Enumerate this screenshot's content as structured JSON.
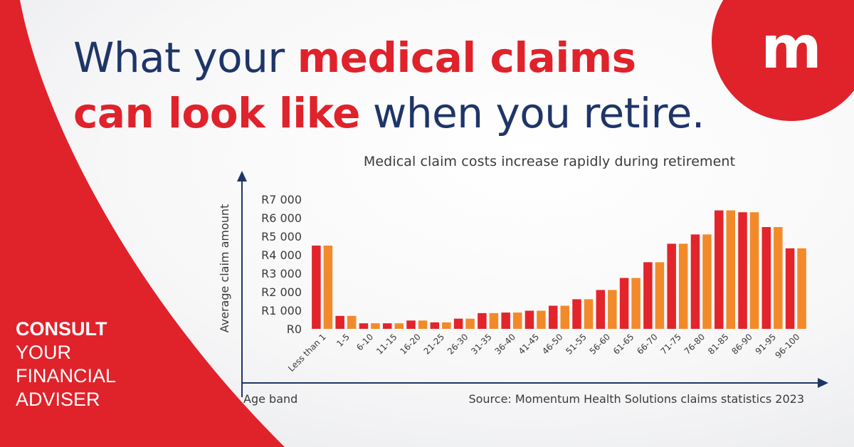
{
  "headline": {
    "part1": "What your ",
    "part2": "medical claims",
    "part3": "can look like",
    "part4": " when you retire."
  },
  "logo": {
    "letter": "m",
    "icon": "momentum-logo-icon"
  },
  "cta": {
    "line1": "CONSULT",
    "line2": "YOUR",
    "line3": "FINANCIAL",
    "line4": "ADVISER"
  },
  "colors": {
    "brand_red": "#e0222b",
    "navy": "#1f3568",
    "bar_red": "#e3242b",
    "bar_orange": "#f28a2a",
    "axis": "#1f3568"
  },
  "chart_data": {
    "type": "bar",
    "title": "Medical claim costs increase rapidly during retirement",
    "xlabel": "Age band",
    "ylabel": "Average claim amount",
    "source": "Source: Momentum Health Solutions claims statistics 2023",
    "categories": [
      "Less than 1",
      "1-5",
      "6-10",
      "11-15",
      "16-20",
      "21-25",
      "26-30",
      "31-35",
      "36-40",
      "41-45",
      "46-50",
      "51-55",
      "56-60",
      "61-65",
      "66-70",
      "71-75",
      "76-80",
      "81-85",
      "86-90",
      "91-95",
      "96-100"
    ],
    "series": [
      {
        "color": "#e3242b",
        "values": [
          4500,
          700,
          300,
          300,
          450,
          350,
          550,
          850,
          880,
          980,
          1250,
          1600,
          2100,
          2750,
          3600,
          4600,
          5100,
          6400,
          6300,
          5500,
          4350
        ]
      },
      {
        "color": "#f28a2a",
        "values": [
          4500,
          700,
          300,
          300,
          450,
          350,
          550,
          850,
          880,
          980,
          1250,
          1600,
          2100,
          2750,
          3600,
          4600,
          5100,
          6400,
          6300,
          5500,
          4350
        ]
      }
    ],
    "ylim": [
      0,
      7000
    ],
    "yticks": [
      {
        "value": 0,
        "label": "R0"
      },
      {
        "value": 1000,
        "label": "R1 000"
      },
      {
        "value": 2000,
        "label": "R2 000"
      },
      {
        "value": 3000,
        "label": "R3 000"
      },
      {
        "value": 4000,
        "label": "R4 000"
      },
      {
        "value": 5000,
        "label": "R5 000"
      },
      {
        "value": 6000,
        "label": "R6 000"
      },
      {
        "value": 7000,
        "label": "R7 000"
      }
    ],
    "grid": false,
    "legend": "none"
  }
}
